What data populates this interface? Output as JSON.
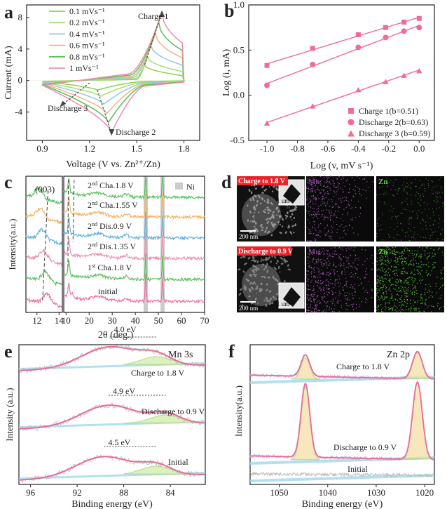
{
  "chart_data": [
    {
      "panel": "a",
      "type": "line",
      "xlabel": "Voltage (V vs. Zn²⁺/Zn)",
      "ylabel": "Current (mA)",
      "xlim": [
        0.8,
        1.9
      ],
      "ylim": [
        -7.6,
        9.6
      ],
      "xticks": [
        "0.9",
        "1.2",
        "1.5",
        "1.8"
      ],
      "yticks": [
        "-4",
        "0",
        "4",
        "8"
      ],
      "legend_position": "top-left",
      "series": [
        {
          "name": "0.1 mVs⁻¹",
          "color": "#8cd44a",
          "anodic_peak": [
            1.55,
            2.0
          ],
          "cathodic_peak": [
            1.25,
            -1.2
          ],
          "rise_start": [
            1.5,
            0.15
          ],
          "end_current": 0.6
        },
        {
          "name": "0.2 mVs⁻¹",
          "color": "#a4e06e",
          "anodic_peak": [
            1.57,
            3.0
          ],
          "cathodic_peak": [
            1.27,
            -2.0
          ],
          "rise_start": [
            1.49,
            0.25
          ],
          "end_current": 1.1
        },
        {
          "name": "0.4 mVs⁻¹",
          "color": "#92c9e6",
          "anodic_peak": [
            1.59,
            4.5
          ],
          "cathodic_peak": [
            1.29,
            -3.0
          ],
          "rise_start": [
            1.48,
            0.4
          ],
          "end_current": 1.9
        },
        {
          "name": "0.6 mVs⁻¹",
          "color": "#f0b585",
          "anodic_peak": [
            1.62,
            6.0
          ],
          "cathodic_peak": [
            1.31,
            -4.2
          ],
          "rise_start": [
            1.47,
            0.55
          ],
          "end_current": 2.8
        },
        {
          "name": "0.8 mVs⁻¹",
          "color": "#56c05a",
          "anodic_peak": [
            1.64,
            7.4
          ],
          "cathodic_peak": [
            1.32,
            -5.3
          ],
          "rise_start": [
            1.46,
            0.7
          ],
          "end_current": 3.7
        },
        {
          "name": "1 mVs⁻¹",
          "color": "#f08cae",
          "anodic_peak": [
            1.66,
            8.7
          ],
          "cathodic_peak": [
            1.34,
            -6.6
          ],
          "rise_start": [
            1.45,
            0.85
          ],
          "end_current": 4.6
        }
      ],
      "annotations": [
        "Charge 1",
        "Discharge 3",
        "Discharge 2"
      ]
    },
    {
      "panel": "b",
      "type": "scatter",
      "xlabel": "Log (v, mV s⁻¹)",
      "ylabel": "Log (i, mA)",
      "xlim": [
        -1.12,
        0.1
      ],
      "ylim": [
        -0.5,
        1.0
      ],
      "xticks": [
        "-1.0",
        "-0.8",
        "-0.6",
        "-0.4",
        "-0.2",
        "0.0"
      ],
      "yticks": [
        "-0.5",
        "0.0",
        "0.5",
        "1.0"
      ],
      "x": [
        -1.0,
        -0.7,
        -0.4,
        -0.22,
        -0.1,
        0.0
      ],
      "legend_position": "bottom-right",
      "series": [
        {
          "name": "Charge 1(b=0.51)",
          "marker": "square",
          "color": "#f06b95",
          "values": [
            0.33,
            0.52,
            0.67,
            0.75,
            0.81,
            0.85
          ]
        },
        {
          "name": "Discharge 2(b=0.63)",
          "marker": "circle",
          "color": "#f06b95",
          "values": [
            0.11,
            0.34,
            0.53,
            0.64,
            0.71,
            0.75
          ]
        },
        {
          "name": "Discharge 3 (b=0.59)",
          "marker": "triangle",
          "color": "#f06b95",
          "values": [
            -0.31,
            -0.12,
            0.06,
            0.15,
            0.22,
            0.27
          ]
        }
      ]
    },
    {
      "panel": "c",
      "type": "line",
      "xlabel": "2θ (deg.)",
      "ylabel": "Intensity(a.u.)",
      "left_xlim": [
        11,
        14.3
      ],
      "left_xticks": [
        "12",
        "14"
      ],
      "right_xlim": [
        9,
        70
      ],
      "right_xticks": [
        "10",
        "20",
        "30",
        "40",
        "50",
        "60",
        "70"
      ],
      "legend": [
        "Ni"
      ],
      "peak_label": "(003)",
      "ni_peaks": [
        44.5,
        51.8
      ],
      "traces": [
        {
          "label": "initial",
          "color": "#f06b95"
        },
        {
          "label": "1st Cha.1.8 V",
          "color": "#56c05a"
        },
        {
          "label": "2nd Dis.1.35 V",
          "color": "#f08cae"
        },
        {
          "label": "2nd Dis.0.9 V",
          "color": "#5fb0dd"
        },
        {
          "label": "2nd Cha.1.55 V",
          "color": "#f2b15f"
        },
        {
          "label": "2nd Cha.1.8 V",
          "color": "#56c05a"
        }
      ]
    },
    {
      "panel": "e",
      "type": "line",
      "title": "Mn 3s",
      "xlabel": "Binding energy (eV)",
      "ylabel": "Intensity (a.u.)",
      "xlim": [
        97,
        81
      ],
      "xticks": [
        "96",
        "92",
        "88",
        "84"
      ],
      "traces": [
        {
          "label": "Charge to 1.8 V",
          "splitting": "4.0 eV",
          "peak1": 89.2,
          "peak2": 85.2
        },
        {
          "label": "Discharge to 0.9 V",
          "splitting": "4.9 eV",
          "peak1": 89.3,
          "peak2": 84.4
        },
        {
          "label": "Initial",
          "splitting": "4.5 eV",
          "peak1": 89.7,
          "peak2": 85.2
        }
      ]
    },
    {
      "panel": "f",
      "type": "line",
      "title": "Zn 2p",
      "xlabel": "Binding energy (eV)",
      "ylabel": "Intensity(a.u.)",
      "xlim": [
        1056,
        1018
      ],
      "xticks": [
        "1050",
        "1040",
        "1030",
        "1020"
      ],
      "peaks": [
        1044.6,
        1021.5
      ],
      "traces": [
        {
          "label": "Charge to 1.8 V",
          "height1": 0.16,
          "height2": 0.35
        },
        {
          "label": "Discharge to 0.9 V",
          "height1": 0.55,
          "height2": 1.0
        },
        {
          "label": "Initial",
          "height1": 0,
          "height2": 0
        }
      ]
    }
  ],
  "panels": {
    "a": "a",
    "b": "b",
    "c": "c",
    "d": "d",
    "e": "e",
    "f": "f"
  },
  "panel_d": {
    "row1_label": "Charge to 1.8 V",
    "row2_label": "Discharge to 0.9 V",
    "mn_label": "Mn",
    "zn_label": "Zn",
    "scale_200": "200 nm",
    "scale_1um": "1 um",
    "mn_color": "#c06ad0",
    "zn_color": "#5ad040"
  }
}
